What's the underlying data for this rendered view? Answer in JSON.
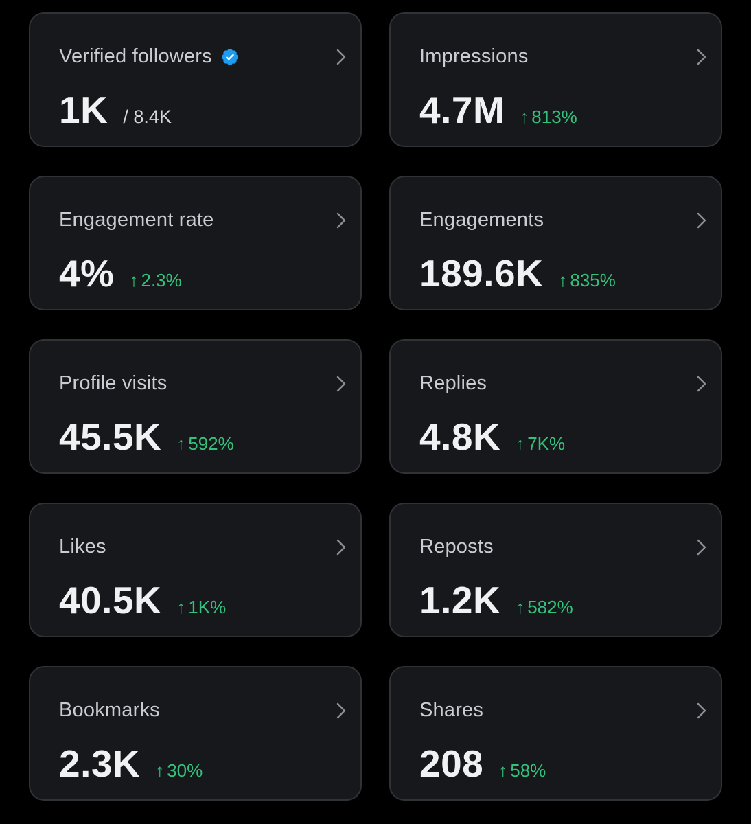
{
  "colors": {
    "background": "#000000",
    "card": "#16181c",
    "card_border": "#2f3336",
    "positive": "#34c27a",
    "verified": "#1d9bf0"
  },
  "cards": [
    {
      "title": "Verified followers",
      "value": "1K",
      "sub": "/ 8.4K",
      "badge_icon": "verified-badge-icon"
    },
    {
      "title": "Impressions",
      "value": "4.7M",
      "delta": "813%",
      "arrow_icon": "arrow-up-icon"
    },
    {
      "title": "Engagement rate",
      "value": "4%",
      "delta": "2.3%",
      "arrow_icon": "arrow-up-icon"
    },
    {
      "title": "Engagements",
      "value": "189.6K",
      "delta": "835%",
      "arrow_icon": "arrow-up-icon"
    },
    {
      "title": "Profile visits",
      "value": "45.5K",
      "delta": "592%",
      "arrow_icon": "arrow-up-icon"
    },
    {
      "title": "Replies",
      "value": "4.8K",
      "delta": "7K%",
      "arrow_icon": "arrow-up-icon"
    },
    {
      "title": "Likes",
      "value": "40.5K",
      "delta": "1K%",
      "arrow_icon": "arrow-up-icon"
    },
    {
      "title": "Reposts",
      "value": "1.2K",
      "delta": "582%",
      "arrow_icon": "arrow-up-icon"
    },
    {
      "title": "Bookmarks",
      "value": "2.3K",
      "delta": "30%",
      "arrow_icon": "arrow-up-icon"
    },
    {
      "title": "Shares",
      "value": "208",
      "delta": "58%",
      "arrow_icon": "arrow-up-icon"
    }
  ]
}
